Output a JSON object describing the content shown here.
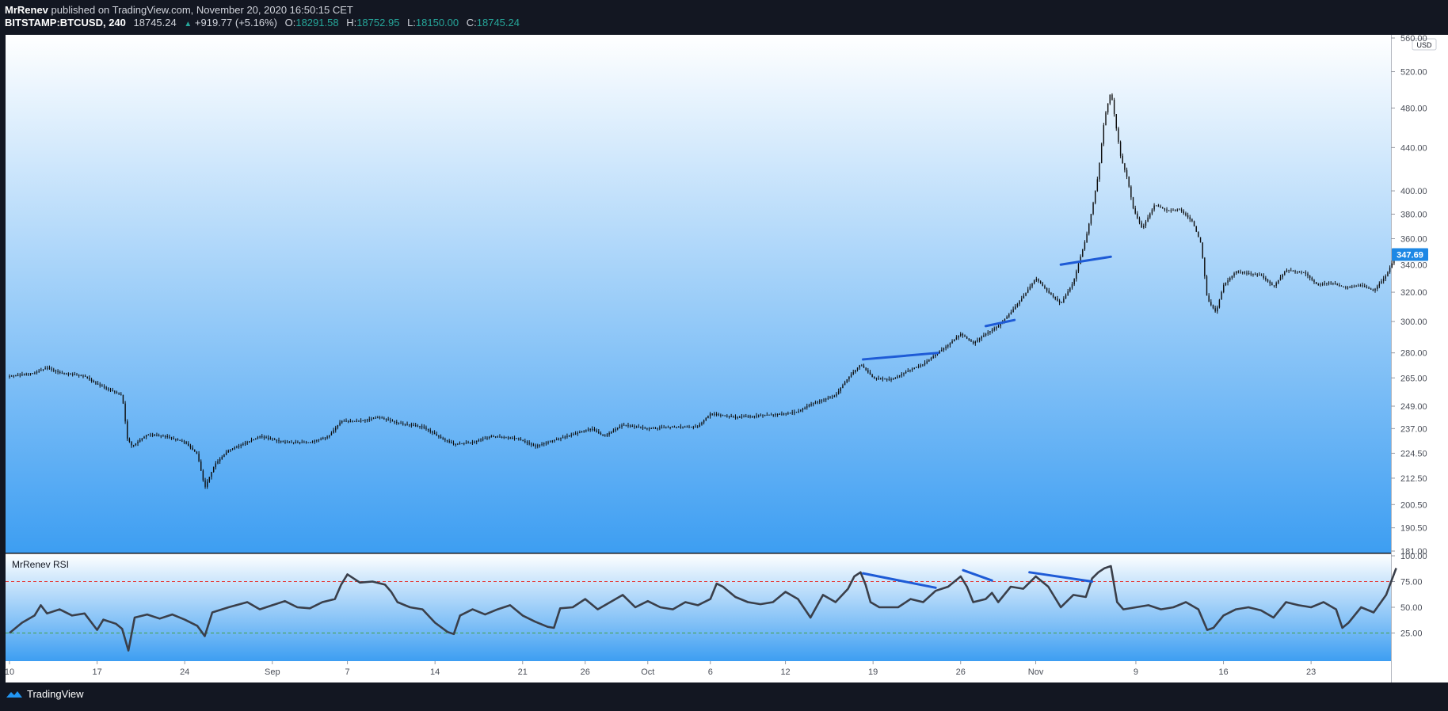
{
  "header": {
    "author": "MrRenev",
    "published_text": "published on TradingView.com, November 20, 2020 16:50:15 CET",
    "symbol": "BITSTAMP:BTCUSD, 240",
    "last": "18745.24",
    "change": "+919.77 (+5.16%)",
    "o_label": "O:",
    "o_value": "18291.58",
    "h_label": "H:",
    "h_value": "18752.95",
    "l_label": "L:",
    "l_value": "18150.00",
    "c_label": "C:",
    "c_value": "18745.24"
  },
  "footer": {
    "brand": "TradingView"
  },
  "colors": {
    "bg": "#131722",
    "accent": "#2196f3",
    "candle": "#0d0d0d",
    "trendline": "#1e5bd6",
    "rsi_line": "#3a3f4a",
    "overbought_line": "#e53935",
    "oversold_line": "#43a047",
    "price_label_bg": "#1e88e5"
  },
  "chart_data": [
    {
      "type": "candlestick",
      "currency": "USD",
      "scale": "log",
      "price_axis_ticks": [
        "560.00",
        "520.00",
        "480.00",
        "440.00",
        "400.00",
        "380.00",
        "360.00",
        "340.00",
        "320.00",
        "300.00",
        "280.00",
        "265.00",
        "249.00",
        "237.00",
        "224.50",
        "212.50",
        "200.50",
        "190.50",
        "181.00"
      ],
      "tick_values": [
        560,
        520,
        480,
        440,
        400,
        380,
        360,
        340,
        320,
        300,
        280,
        265,
        249,
        237,
        224.5,
        212.5,
        200.5,
        190.5,
        181
      ],
      "last_price_label": "347.69",
      "last_price": 347.69,
      "ylim": [
        181,
        560
      ],
      "x_range": [
        0,
        108
      ],
      "x_ticks": [
        {
          "label": "10",
          "x": 0
        },
        {
          "label": "17",
          "x": 7
        },
        {
          "label": "24",
          "x": 14
        },
        {
          "label": "Sep",
          "x": 21
        },
        {
          "label": "7",
          "x": 27
        },
        {
          "label": "14",
          "x": 34
        },
        {
          "label": "21",
          "x": 41
        },
        {
          "label": "26",
          "x": 46
        },
        {
          "label": "Oct",
          "x": 51
        },
        {
          "label": "6",
          "x": 56
        },
        {
          "label": "12",
          "x": 62
        },
        {
          "label": "19",
          "x": 69
        },
        {
          "label": "26",
          "x": 76
        },
        {
          "label": "Nov",
          "x": 82
        },
        {
          "label": "9",
          "x": 90
        },
        {
          "label": "16",
          "x": 97
        },
        {
          "label": "23",
          "x": 104
        }
      ],
      "price_path": [
        [
          0,
          266
        ],
        [
          2,
          268
        ],
        [
          3,
          271
        ],
        [
          4,
          268
        ],
        [
          6,
          266
        ],
        [
          6.8,
          262
        ],
        [
          8,
          258
        ],
        [
          9,
          255
        ],
        [
          9.4,
          232
        ],
        [
          9.8,
          228
        ],
        [
          11,
          234
        ],
        [
          12.5,
          233
        ],
        [
          14,
          230
        ],
        [
          15,
          224
        ],
        [
          15.6,
          208
        ],
        [
          16.4,
          219
        ],
        [
          17.5,
          226
        ],
        [
          19,
          230
        ],
        [
          20,
          233
        ],
        [
          22,
          230
        ],
        [
          24,
          230
        ],
        [
          25.5,
          233
        ],
        [
          26.5,
          241
        ],
        [
          28,
          241
        ],
        [
          29.5,
          243
        ],
        [
          31,
          240
        ],
        [
          33,
          238
        ],
        [
          34.5,
          232
        ],
        [
          35.5,
          229
        ],
        [
          37,
          230
        ],
        [
          38.5,
          233
        ],
        [
          40.5,
          232
        ],
        [
          42,
          228
        ],
        [
          43.5,
          231
        ],
        [
          45,
          234
        ],
        [
          46.5,
          237
        ],
        [
          47.5,
          233
        ],
        [
          49,
          239
        ],
        [
          51,
          237
        ],
        [
          53,
          238
        ],
        [
          55,
          238
        ],
        [
          56,
          245
        ],
        [
          58,
          243
        ],
        [
          60,
          244
        ],
        [
          62,
          245
        ],
        [
          63,
          246
        ],
        [
          64,
          250
        ],
        [
          66,
          255
        ],
        [
          67,
          265
        ],
        [
          68,
          273
        ],
        [
          69,
          265
        ],
        [
          70.5,
          264
        ],
        [
          72,
          270
        ],
        [
          73,
          273
        ],
        [
          74,
          279
        ],
        [
          75,
          285
        ],
        [
          76,
          292
        ],
        [
          77,
          286
        ],
        [
          78,
          292
        ],
        [
          79,
          297
        ],
        [
          80,
          306
        ],
        [
          81,
          317
        ],
        [
          82,
          330
        ],
        [
          83,
          320
        ],
        [
          84,
          312
        ],
        [
          85,
          327
        ],
        [
          86,
          360
        ],
        [
          86.5,
          384
        ],
        [
          87,
          415
        ],
        [
          87.5,
          470
        ],
        [
          88,
          498
        ],
        [
          88.4,
          462
        ],
        [
          88.8,
          430
        ],
        [
          89.3,
          412
        ],
        [
          89.8,
          384
        ],
        [
          90.5,
          368
        ],
        [
          91.5,
          388
        ],
        [
          92.5,
          383
        ],
        [
          93.5,
          384
        ],
        [
          94.5,
          374
        ],
        [
          95.2,
          356
        ],
        [
          95.7,
          315
        ],
        [
          96.4,
          306
        ],
        [
          97,
          325
        ],
        [
          98,
          335
        ],
        [
          100,
          332
        ],
        [
          101,
          324
        ],
        [
          102,
          336
        ],
        [
          103.5,
          334
        ],
        [
          104.5,
          325
        ],
        [
          105.5,
          327
        ],
        [
          106.8,
          323
        ],
        [
          108,
          325
        ],
        [
          109,
          321
        ],
        [
          110,
          332
        ],
        [
          110.8,
          347.69
        ]
      ],
      "trendlines": [
        {
          "from": [
            68.2,
            276
          ],
          "to": [
            74.2,
            280
          ]
        },
        {
          "from": [
            78,
            297
          ],
          "to": [
            80.3,
            301
          ]
        },
        {
          "from": [
            84,
            340
          ],
          "to": [
            88,
            346
          ]
        }
      ]
    },
    {
      "type": "line",
      "title": "MrRenev RSI",
      "ylim": [
        0,
        100
      ],
      "y_ticks": [
        "100.00",
        "75.00",
        "50.00",
        "25.00"
      ],
      "tick_values": [
        100,
        75,
        50,
        25
      ],
      "reference_lines": [
        75,
        25
      ],
      "rsi_path": [
        [
          0,
          25
        ],
        [
          1,
          35
        ],
        [
          2,
          42
        ],
        [
          2.5,
          52
        ],
        [
          3,
          44
        ],
        [
          4,
          48
        ],
        [
          5,
          42
        ],
        [
          6,
          44
        ],
        [
          7,
          28
        ],
        [
          7.5,
          38
        ],
        [
          8.5,
          34
        ],
        [
          9,
          29
        ],
        [
          9.5,
          8
        ],
        [
          10,
          40
        ],
        [
          11,
          43
        ],
        [
          12,
          39
        ],
        [
          13,
          43
        ],
        [
          14,
          38
        ],
        [
          15,
          32
        ],
        [
          15.6,
          22
        ],
        [
          16.2,
          45
        ],
        [
          17.5,
          50
        ],
        [
          19,
          55
        ],
        [
          20,
          48
        ],
        [
          21,
          52
        ],
        [
          22,
          56
        ],
        [
          23,
          50
        ],
        [
          24,
          49
        ],
        [
          25,
          55
        ],
        [
          26,
          58
        ],
        [
          26.5,
          72
        ],
        [
          27,
          82
        ],
        [
          28,
          74
        ],
        [
          29,
          75
        ],
        [
          30,
          72
        ],
        [
          30.5,
          65
        ],
        [
          31,
          55
        ],
        [
          32,
          50
        ],
        [
          33,
          48
        ],
        [
          34,
          35
        ],
        [
          35,
          26
        ],
        [
          35.5,
          24
        ],
        [
          36,
          42
        ],
        [
          37,
          48
        ],
        [
          38,
          43
        ],
        [
          39,
          48
        ],
        [
          40,
          52
        ],
        [
          41,
          42
        ],
        [
          42,
          36
        ],
        [
          43,
          31
        ],
        [
          43.5,
          30
        ],
        [
          44,
          49
        ],
        [
          45,
          50
        ],
        [
          46,
          58
        ],
        [
          47,
          48
        ],
        [
          48,
          55
        ],
        [
          49,
          62
        ],
        [
          50,
          50
        ],
        [
          51,
          56
        ],
        [
          52,
          50
        ],
        [
          53,
          48
        ],
        [
          54,
          55
        ],
        [
          55,
          52
        ],
        [
          56,
          58
        ],
        [
          56.5,
          73
        ],
        [
          57,
          70
        ],
        [
          58,
          60
        ],
        [
          59,
          55
        ],
        [
          60,
          53
        ],
        [
          61,
          55
        ],
        [
          62,
          65
        ],
        [
          63,
          58
        ],
        [
          64,
          40
        ],
        [
          65,
          62
        ],
        [
          66,
          55
        ],
        [
          67,
          68
        ],
        [
          67.5,
          80
        ],
        [
          68,
          84
        ],
        [
          68.4,
          72
        ],
        [
          68.8,
          55
        ],
        [
          69.5,
          50
        ],
        [
          71,
          50
        ],
        [
          72,
          58
        ],
        [
          73,
          55
        ],
        [
          74,
          66
        ],
        [
          75,
          70
        ],
        [
          76,
          80
        ],
        [
          76.5,
          70
        ],
        [
          77,
          55
        ],
        [
          78,
          58
        ],
        [
          78.5,
          64
        ],
        [
          79,
          55
        ],
        [
          80,
          70
        ],
        [
          81,
          68
        ],
        [
          82,
          80
        ],
        [
          83,
          70
        ],
        [
          83.5,
          60
        ],
        [
          84,
          50
        ],
        [
          85,
          62
        ],
        [
          86,
          60
        ],
        [
          86.5,
          78
        ],
        [
          87,
          84
        ],
        [
          87.5,
          88
        ],
        [
          88,
          90
        ],
        [
          88.5,
          55
        ],
        [
          89,
          48
        ],
        [
          90,
          50
        ],
        [
          91,
          52
        ],
        [
          92,
          48
        ],
        [
          93,
          50
        ],
        [
          94,
          55
        ],
        [
          95,
          48
        ],
        [
          95.7,
          28
        ],
        [
          96.2,
          30
        ],
        [
          97,
          42
        ],
        [
          98,
          48
        ],
        [
          99,
          50
        ],
        [
          100,
          47
        ],
        [
          101,
          40
        ],
        [
          102,
          55
        ],
        [
          103,
          52
        ],
        [
          104,
          50
        ],
        [
          105,
          55
        ],
        [
          106,
          48
        ],
        [
          106.5,
          30
        ],
        [
          107,
          35
        ],
        [
          108,
          50
        ],
        [
          109,
          45
        ],
        [
          110,
          62
        ],
        [
          110.8,
          88
        ]
      ],
      "trendlines": [
        {
          "from": [
            68.2,
            83
          ],
          "to": [
            74,
            69
          ]
        },
        {
          "from": [
            76.2,
            86
          ],
          "to": [
            78.5,
            76
          ]
        },
        {
          "from": [
            81.5,
            84
          ],
          "to": [
            86.5,
            75
          ]
        }
      ]
    }
  ]
}
